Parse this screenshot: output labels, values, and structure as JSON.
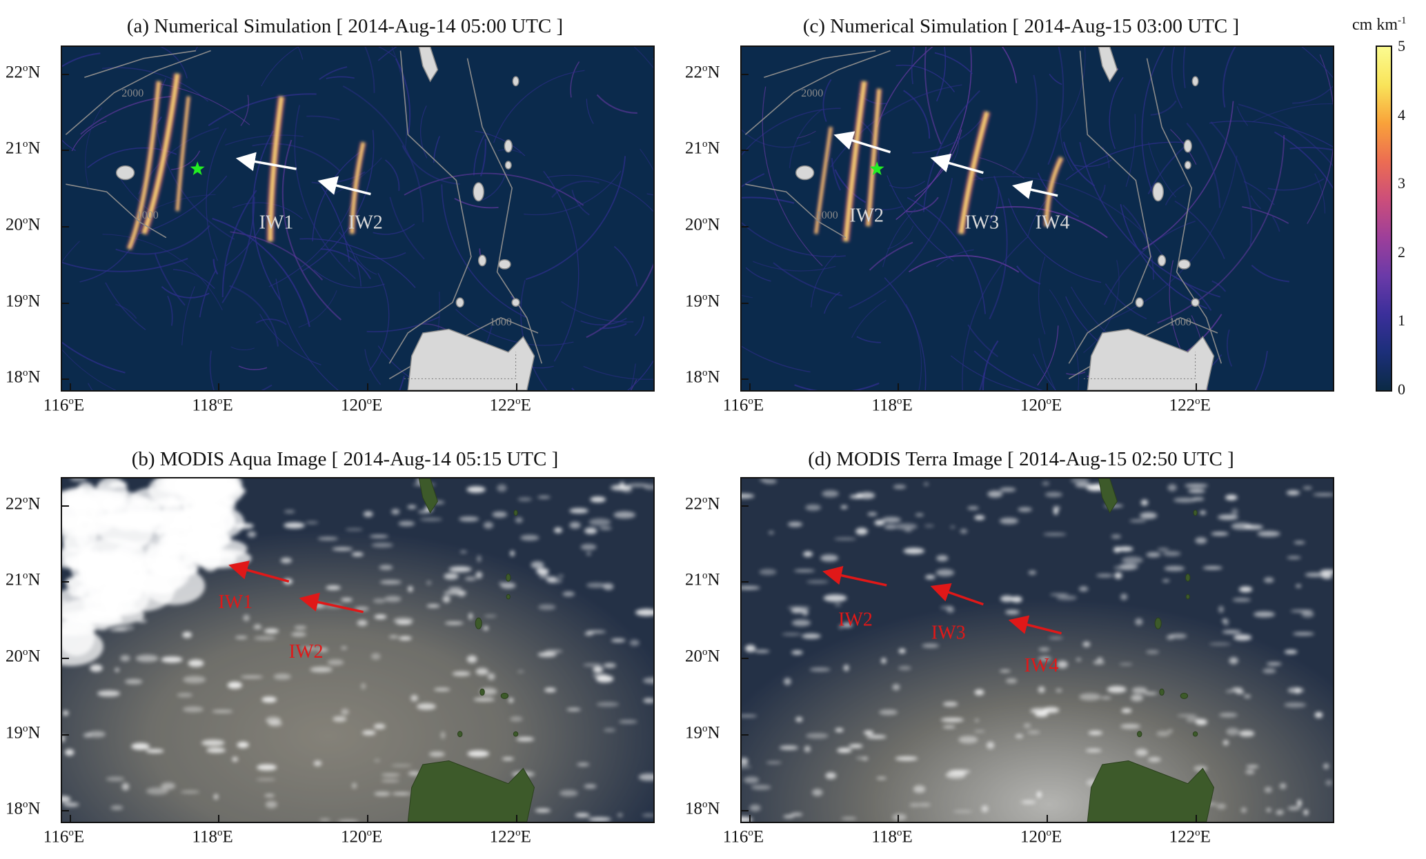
{
  "panels": [
    {
      "id": "a",
      "title": "(a) Numerical Simulation  [ 2014-Aug-14 05:00 UTC ]",
      "type": "simulation",
      "star": true,
      "wave_labels": [
        {
          "text": "IW1",
          "lon": 118.55,
          "lat": 19.97
        },
        {
          "text": "IW2",
          "lon": 119.75,
          "lat": 19.97
        }
      ],
      "arrows": [
        {
          "from": [
            119.05,
            20.75
          ],
          "to": [
            118.3,
            20.88
          ]
        },
        {
          "from": [
            120.05,
            20.42
          ],
          "to": [
            119.4,
            20.58
          ]
        }
      ],
      "bathy_labels": [
        {
          "text": "2000",
          "lon": 116.7,
          "lat": 21.7
        },
        {
          "text": "1000",
          "lon": 116.9,
          "lat": 20.1
        },
        {
          "text": "1000",
          "lon": 121.65,
          "lat": 18.7
        }
      ]
    },
    {
      "id": "c",
      "title": "(c) Numerical Simulation  [ 2014-Aug-15 03:00 UTC ]",
      "type": "simulation",
      "star": true,
      "wave_labels": [
        {
          "text": "IW2",
          "lon": 117.35,
          "lat": 20.06
        },
        {
          "text": "IW3",
          "lon": 118.9,
          "lat": 19.97
        },
        {
          "text": "IW4",
          "lon": 119.85,
          "lat": 19.97
        }
      ],
      "arrows": [
        {
          "from": [
            117.9,
            20.97
          ],
          "to": [
            117.2,
            21.18
          ]
        },
        {
          "from": [
            119.15,
            20.7
          ],
          "to": [
            118.5,
            20.88
          ]
        },
        {
          "from": [
            120.15,
            20.4
          ],
          "to": [
            119.6,
            20.52
          ]
        }
      ],
      "bathy_labels": [
        {
          "text": "2000",
          "lon": 116.7,
          "lat": 21.7
        },
        {
          "text": "1000",
          "lon": 116.9,
          "lat": 20.1
        },
        {
          "text": "1000",
          "lon": 121.65,
          "lat": 18.7
        }
      ]
    },
    {
      "id": "b",
      "title": "(b) MODIS Aqua Image  [ 2014-Aug-14 05:15 UTC ]",
      "type": "satellite",
      "star": false,
      "wave_labels": [
        {
          "text": "IW1",
          "lon": 118.0,
          "lat": 20.65
        },
        {
          "text": "IW2",
          "lon": 118.95,
          "lat": 20.0
        }
      ],
      "arrows": [
        {
          "from": [
            118.95,
            21.0
          ],
          "to": [
            118.2,
            21.2
          ]
        },
        {
          "from": [
            119.95,
            20.6
          ],
          "to": [
            119.15,
            20.77
          ]
        }
      ],
      "bathy_labels": []
    },
    {
      "id": "d",
      "title": "(d) MODIS Terra Image  [ 2014-Aug-15 02:50 UTC ]",
      "type": "satellite",
      "star": false,
      "wave_labels": [
        {
          "text": "IW2",
          "lon": 117.2,
          "lat": 20.42
        },
        {
          "text": "IW3",
          "lon": 118.45,
          "lat": 20.25
        },
        {
          "text": "IW4",
          "lon": 119.7,
          "lat": 19.82
        }
      ],
      "arrows": [
        {
          "from": [
            117.85,
            20.95
          ],
          "to": [
            117.05,
            21.12
          ]
        },
        {
          "from": [
            119.15,
            20.7
          ],
          "to": [
            118.5,
            20.92
          ]
        },
        {
          "from": [
            120.2,
            20.32
          ],
          "to": [
            119.55,
            20.48
          ]
        }
      ],
      "bathy_labels": []
    }
  ],
  "axes": {
    "lon_range": [
      115.9,
      123.85
    ],
    "lat_range": [
      17.85,
      22.35
    ],
    "lon_ticks": [
      {
        "value": 116,
        "deg": "116",
        "sup": "o",
        "hemi": "E"
      },
      {
        "value": 118,
        "deg": "118",
        "sup": "o",
        "hemi": "E"
      },
      {
        "value": 120,
        "deg": "120",
        "sup": "o",
        "hemi": "E"
      },
      {
        "value": 122,
        "deg": "122",
        "sup": "o",
        "hemi": "E"
      }
    ],
    "lat_ticks": [
      {
        "value": 22,
        "deg": "22",
        "sup": "o",
        "hemi": "N"
      },
      {
        "value": 21,
        "deg": "21",
        "sup": "o",
        "hemi": "N"
      },
      {
        "value": 20,
        "deg": "20",
        "sup": "o",
        "hemi": "N"
      },
      {
        "value": 19,
        "deg": "19",
        "sup": "o",
        "hemi": "N"
      },
      {
        "value": 18,
        "deg": "18",
        "sup": "o",
        "hemi": "N"
      }
    ]
  },
  "colorbar": {
    "unit_main": "cm km",
    "unit_sup": "-1",
    "range": [
      0,
      5
    ],
    "ticks": [
      "0",
      "1",
      "2",
      "3",
      "4",
      "5"
    ],
    "colormap": [
      "#0b2a45",
      "#1c2f7a",
      "#3b2f9a",
      "#6b3aa8",
      "#9d3f9a",
      "#cc4e7a",
      "#ec6d52",
      "#f9a23a",
      "#f9e45a",
      "#fbfb90"
    ]
  },
  "colors": {
    "ocean_sim": "#0b2a4c",
    "land": "#d8d8d8",
    "bathy_contour": "#8b8b8b",
    "arrow_sim": "#ffffff",
    "arrow_sat": "#e01818",
    "label_sim": "#d9d9d9",
    "label_sat": "#e01818",
    "star": "#22ee22"
  }
}
